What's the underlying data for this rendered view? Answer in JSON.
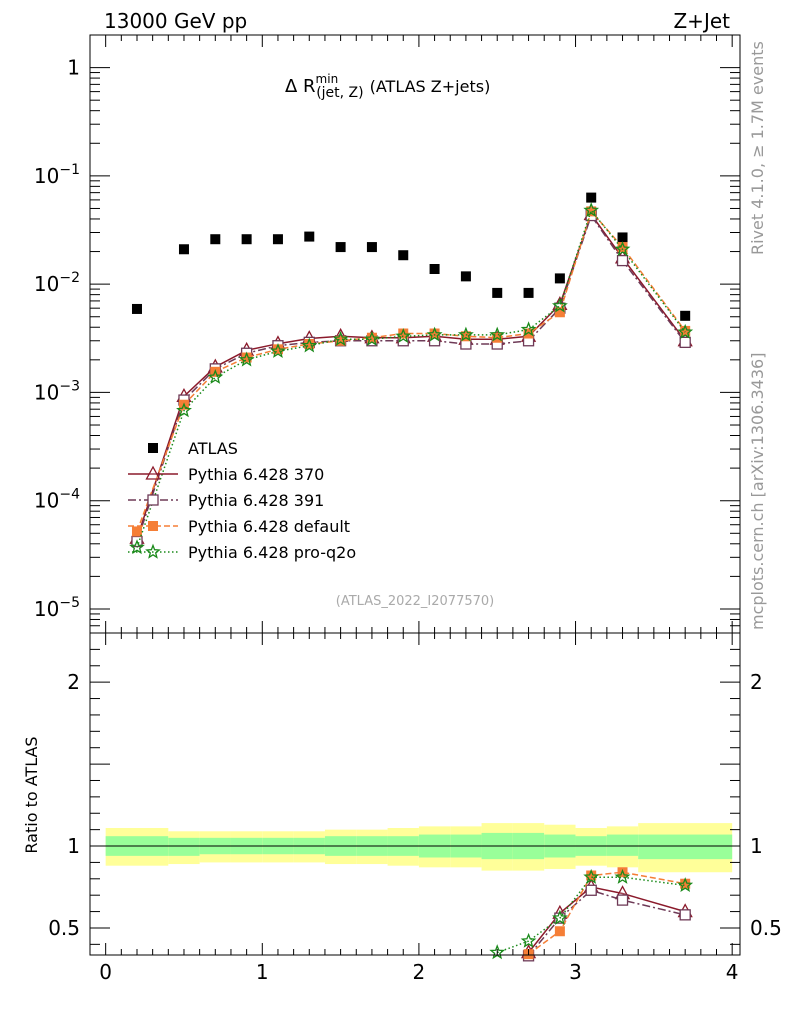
{
  "header": {
    "left": "13000 GeV pp",
    "right": "Z+Jet"
  },
  "side_labels": {
    "rivet": "Rivet 4.1.0, ≥ 1.7M events",
    "mcplots": "mcplots.cern.ch [arXiv:1306.3436]"
  },
  "chart_data": [
    {
      "type": "scatter",
      "title_main": "Δ R",
      "title_sup": "min",
      "title_sub": "(jet, Z)",
      "title_rest": "(ATLAS Z+jets)",
      "watermark": "(ATLAS_2022_I2077570)",
      "xlabel": "",
      "ylabel": "",
      "yscale": "log",
      "xlim": [
        -0.1,
        4.05
      ],
      "ylim": [
        6e-06,
        2.0
      ],
      "y_ticks": [
        {
          "value": 1,
          "base": "1",
          "exp": ""
        },
        {
          "value": 0.1,
          "base": "10",
          "exp": "−1"
        },
        {
          "value": 0.01,
          "base": "10",
          "exp": "−2"
        },
        {
          "value": 0.001,
          "base": "10",
          "exp": "−3"
        },
        {
          "value": 0.0001,
          "base": "10",
          "exp": "−4"
        },
        {
          "value": 1e-05,
          "base": "10",
          "exp": "−5"
        }
      ],
      "x": [
        0.2,
        0.5,
        0.7,
        0.9,
        1.1,
        1.3,
        1.5,
        1.7,
        1.9,
        2.1,
        2.3,
        2.5,
        2.7,
        2.9,
        3.1,
        3.3,
        3.7
      ],
      "series": [
        {
          "name": "ATLAS",
          "color": "#000000",
          "marker": "square-filled",
          "values": [
            0.0059,
            0.021,
            0.026,
            0.026,
            0.026,
            0.0275,
            0.022,
            0.022,
            0.0185,
            0.0138,
            0.0118,
            0.0083,
            0.0083,
            0.0113,
            0.063,
            0.027,
            0.0051
          ]
        },
        {
          "name": "Pythia 6.428 370",
          "color": "#8b1a2b",
          "marker": "triangle-open",
          "dash": "",
          "values": [
            4.5e-05,
            0.00092,
            0.00172,
            0.00245,
            0.00282,
            0.00315,
            0.0033,
            0.0032,
            0.0032,
            0.0033,
            0.0031,
            0.0031,
            0.0033,
            0.0065,
            0.044,
            0.0175,
            0.003
          ]
        },
        {
          "name": "Pythia 6.428 391",
          "color": "#6e3a57",
          "marker": "square-open",
          "dash": "8 3 2 3",
          "values": [
            4.2e-05,
            0.00085,
            0.00165,
            0.0023,
            0.0027,
            0.0029,
            0.003,
            0.003,
            0.003,
            0.003,
            0.0028,
            0.0028,
            0.003,
            0.006,
            0.043,
            0.0165,
            0.0029
          ]
        },
        {
          "name": "Pythia 6.428 default",
          "color": "#f57e36",
          "marker": "square-filled",
          "dash": "6 3",
          "values": [
            5.2e-05,
            0.00077,
            0.00155,
            0.0021,
            0.0025,
            0.0028,
            0.003,
            0.0032,
            0.0035,
            0.0035,
            0.0033,
            0.0032,
            0.0035,
            0.0055,
            0.047,
            0.022,
            0.0037
          ]
        },
        {
          "name": "Pythia 6.428 pro-q2o",
          "color": "#1a8a1a",
          "marker": "star",
          "dash": "1.5 2.5",
          "values": [
            3.7e-05,
            0.00068,
            0.00138,
            0.002,
            0.0024,
            0.0027,
            0.0031,
            0.0031,
            0.0033,
            0.0034,
            0.0034,
            0.0034,
            0.0038,
            0.0063,
            0.048,
            0.021,
            0.0036
          ]
        }
      ]
    },
    {
      "type": "ratio",
      "ylabel": "Ratio to ATLAS",
      "xlim": [
        -0.1,
        4.05
      ],
      "ylim": [
        0.335,
        2.3
      ],
      "y_ticks": [
        {
          "value": 0.5,
          "label": "0.5"
        },
        {
          "value": 1,
          "label": "1"
        },
        {
          "value": 2,
          "label": "2"
        }
      ],
      "x_ticks": [
        {
          "value": 0,
          "label": "0"
        },
        {
          "value": 1,
          "label": "1"
        },
        {
          "value": 2,
          "label": "2"
        },
        {
          "value": 3,
          "label": "3"
        },
        {
          "value": 4,
          "label": "4"
        }
      ],
      "bin_edges": [
        0.0,
        0.4,
        0.6,
        0.8,
        1.0,
        1.2,
        1.4,
        1.6,
        1.8,
        2.0,
        2.2,
        2.4,
        2.6,
        2.8,
        3.0,
        3.2,
        3.4,
        4.0
      ],
      "band_yellow": [
        [
          0.88,
          1.11
        ],
        [
          0.89,
          1.09
        ],
        [
          0.9,
          1.09
        ],
        [
          0.9,
          1.09
        ],
        [
          0.9,
          1.09
        ],
        [
          0.9,
          1.09
        ],
        [
          0.89,
          1.1
        ],
        [
          0.89,
          1.1
        ],
        [
          0.88,
          1.11
        ],
        [
          0.87,
          1.12
        ],
        [
          0.87,
          1.12
        ],
        [
          0.85,
          1.14
        ],
        [
          0.85,
          1.14
        ],
        [
          0.86,
          1.13
        ],
        [
          0.88,
          1.11
        ],
        [
          0.87,
          1.12
        ],
        [
          0.84,
          1.14
        ]
      ],
      "band_green": [
        [
          0.94,
          1.06
        ],
        [
          0.94,
          1.05
        ],
        [
          0.95,
          1.05
        ],
        [
          0.95,
          1.05
        ],
        [
          0.95,
          1.05
        ],
        [
          0.95,
          1.05
        ],
        [
          0.94,
          1.06
        ],
        [
          0.94,
          1.06
        ],
        [
          0.94,
          1.06
        ],
        [
          0.93,
          1.07
        ],
        [
          0.93,
          1.07
        ],
        [
          0.92,
          1.08
        ],
        [
          0.92,
          1.08
        ],
        [
          0.93,
          1.07
        ],
        [
          0.94,
          1.06
        ],
        [
          0.94,
          1.07
        ],
        [
          0.92,
          1.07
        ]
      ],
      "x": [
        2.5,
        2.7,
        2.9,
        3.1,
        3.3,
        3.7
      ],
      "series": [
        {
          "name": "Pythia 6.428 370",
          "color": "#8b1a2b",
          "marker": "triangle-open",
          "dash": "",
          "values": [
            null,
            0.35,
            0.59,
            0.75,
            0.71,
            0.6
          ]
        },
        {
          "name": "Pythia 6.428 391",
          "color": "#6e3a57",
          "marker": "square-open",
          "dash": "8 3 2 3",
          "values": [
            null,
            0.33,
            0.56,
            0.73,
            0.67,
            0.58
          ]
        },
        {
          "name": "Pythia 6.428 default",
          "color": "#f57e36",
          "marker": "square-filled",
          "dash": "6 3",
          "values": [
            null,
            0.34,
            0.48,
            0.82,
            0.84,
            0.77
          ]
        },
        {
          "name": "Pythia 6.428 pro-q2o",
          "color": "#1a8a1a",
          "marker": "star",
          "dash": "1.5 2.5",
          "values": [
            0.35,
            0.42,
            0.56,
            0.81,
            0.81,
            0.76
          ]
        }
      ]
    }
  ]
}
